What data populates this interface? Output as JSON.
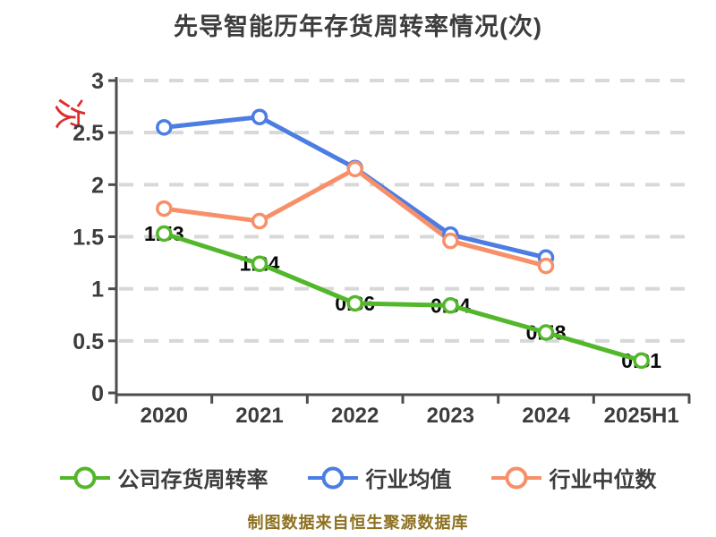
{
  "title": "先导智能历年存货周转率情况(次)",
  "y_axis_unit": "次",
  "footer": "制图数据来自恒生聚源数据库",
  "colors": {
    "background": "#ffffff",
    "title_text": "#3d3d3d",
    "axis": "#4d4d4d",
    "grid": "#d8d8d8",
    "tick_label": "#3d3d3d",
    "value_label": "#0a0a0a",
    "unit_label": "#e02b2b",
    "footer_text": "#8d7120",
    "marker_fill": "#ffffff"
  },
  "chart_data": {
    "type": "line",
    "title": "先导智能历年存货周转率情况(次)",
    "categories": [
      "2020",
      "2021",
      "2022",
      "2023",
      "2024",
      "2025H1"
    ],
    "series": [
      {
        "name": "公司存货周转率",
        "color": "#52b72a",
        "values": [
          1.53,
          1.24,
          0.86,
          0.84,
          0.58,
          0.31
        ],
        "point_labels": [
          "1.53",
          "1.24",
          "0.86",
          "0.84",
          "0.58",
          "0.31"
        ]
      },
      {
        "name": "行业均值",
        "color": "#4c7de2",
        "values": [
          2.55,
          2.65,
          2.16,
          1.52,
          1.3,
          null
        ],
        "point_labels": []
      },
      {
        "name": "行业中位数",
        "color": "#f79069",
        "values": [
          1.77,
          1.65,
          2.15,
          1.46,
          1.22,
          null
        ],
        "point_labels": []
      }
    ],
    "ylim": [
      0,
      3
    ],
    "yticks": [
      "0",
      "0.5",
      "1",
      "1.5",
      "2",
      "2.5",
      "3"
    ],
    "ylabel": "次",
    "grid": "horizontal-dashed",
    "legend_position": "bottom"
  }
}
